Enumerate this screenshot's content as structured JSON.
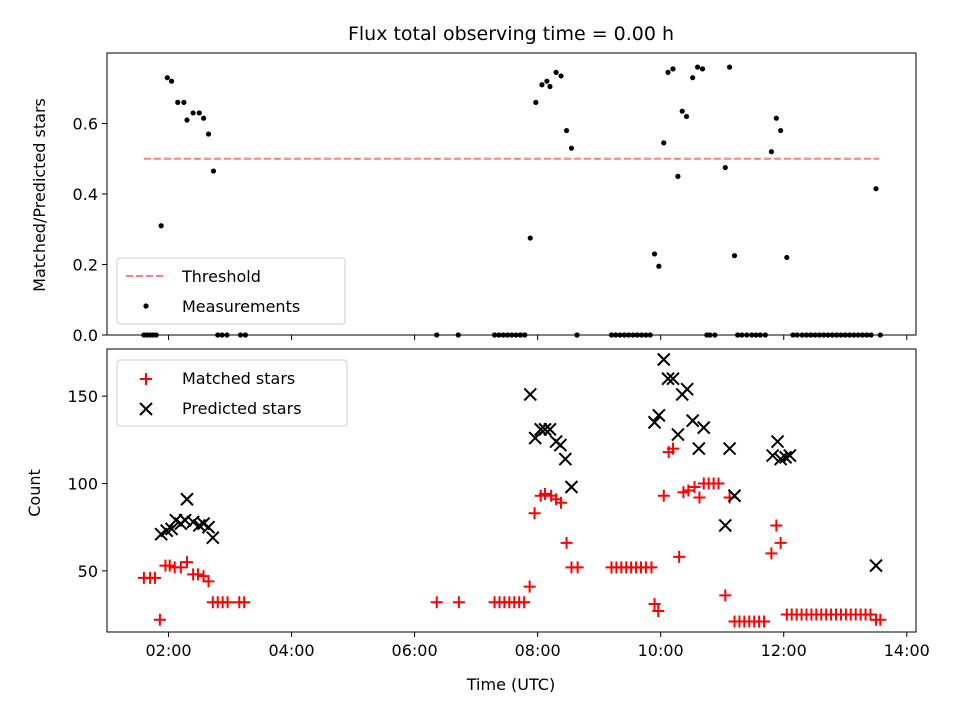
{
  "chart_data": [
    {
      "type": "scatter",
      "title": "Flux total observing time = 0.00 h",
      "xlabel": "",
      "ylabel": "Matched/Predicted stars",
      "xlim": [
        1.0,
        14.15
      ],
      "ylim": [
        0.0,
        0.8
      ],
      "yticks": [
        "0.0",
        "0.2",
        "0.4",
        "0.6"
      ],
      "ytick_values": [
        0.0,
        0.2,
        0.4,
        0.6
      ],
      "xtick_values": [
        2,
        4,
        6,
        8,
        10,
        12,
        14
      ],
      "grid": false,
      "legend": "lower-left",
      "threshold": {
        "name": "Threshold",
        "value": 0.5,
        "x_range": [
          1.6,
          13.55
        ],
        "color": "#ff7f7f",
        "style": "dashed"
      },
      "series": [
        {
          "name": "Measurements",
          "color": "#000000",
          "marker": "dot",
          "points": [
            [
              1.6,
              0
            ],
            [
              1.65,
              0
            ],
            [
              1.7,
              0
            ],
            [
              1.75,
              0
            ],
            [
              1.8,
              0
            ],
            [
              1.88,
              0.31
            ],
            [
              1.98,
              0.73
            ],
            [
              2.05,
              0.72
            ],
            [
              2.15,
              0.66
            ],
            [
              2.25,
              0.66
            ],
            [
              2.3,
              0.61
            ],
            [
              2.4,
              0.63
            ],
            [
              2.5,
              0.63
            ],
            [
              2.57,
              0.615
            ],
            [
              2.65,
              0.57
            ],
            [
              2.73,
              0.465
            ],
            [
              2.8,
              0
            ],
            [
              2.87,
              0
            ],
            [
              2.95,
              0
            ],
            [
              3.17,
              0
            ],
            [
              3.25,
              0
            ],
            [
              6.36,
              0
            ],
            [
              6.71,
              0
            ],
            [
              7.3,
              0
            ],
            [
              7.37,
              0
            ],
            [
              7.44,
              0
            ],
            [
              7.51,
              0
            ],
            [
              7.58,
              0
            ],
            [
              7.65,
              0
            ],
            [
              7.72,
              0
            ],
            [
              7.79,
              0
            ],
            [
              7.88,
              0.275
            ],
            [
              7.97,
              0.66
            ],
            [
              8.07,
              0.71
            ],
            [
              8.15,
              0.72
            ],
            [
              8.2,
              0.705
            ],
            [
              8.3,
              0.745
            ],
            [
              8.38,
              0.735
            ],
            [
              8.47,
              0.58
            ],
            [
              8.55,
              0.53
            ],
            [
              8.64,
              0
            ],
            [
              9.2,
              0
            ],
            [
              9.27,
              0
            ],
            [
              9.34,
              0
            ],
            [
              9.41,
              0
            ],
            [
              9.48,
              0
            ],
            [
              9.55,
              0
            ],
            [
              9.62,
              0
            ],
            [
              9.69,
              0
            ],
            [
              9.76,
              0
            ],
            [
              9.83,
              0
            ],
            [
              9.9,
              0.23
            ],
            [
              9.97,
              0.195
            ],
            [
              10.05,
              0.545
            ],
            [
              10.12,
              0.745
            ],
            [
              10.2,
              0.755
            ],
            [
              10.28,
              0.45
            ],
            [
              10.35,
              0.635
            ],
            [
              10.42,
              0.62
            ],
            [
              10.52,
              0.73
            ],
            [
              10.6,
              0.76
            ],
            [
              10.68,
              0.755
            ],
            [
              10.75,
              0
            ],
            [
              10.8,
              0
            ],
            [
              10.88,
              0
            ],
            [
              11.05,
              0.475
            ],
            [
              11.12,
              0.76
            ],
            [
              11.2,
              0.225
            ],
            [
              11.25,
              0
            ],
            [
              11.32,
              0
            ],
            [
              11.4,
              0
            ],
            [
              11.48,
              0
            ],
            [
              11.55,
              0
            ],
            [
              11.62,
              0
            ],
            [
              11.7,
              0
            ],
            [
              11.8,
              0.52
            ],
            [
              11.88,
              0.615
            ],
            [
              11.95,
              0.58
            ],
            [
              12.05,
              0.22
            ],
            [
              12.15,
              0
            ],
            [
              12.22,
              0
            ],
            [
              12.3,
              0
            ],
            [
              12.37,
              0
            ],
            [
              12.44,
              0
            ],
            [
              12.51,
              0
            ],
            [
              12.58,
              0
            ],
            [
              12.65,
              0
            ],
            [
              12.72,
              0
            ],
            [
              12.79,
              0
            ],
            [
              12.86,
              0
            ],
            [
              12.93,
              0
            ],
            [
              13.0,
              0
            ],
            [
              13.07,
              0
            ],
            [
              13.14,
              0
            ],
            [
              13.21,
              0
            ],
            [
              13.28,
              0
            ],
            [
              13.35,
              0
            ],
            [
              13.42,
              0
            ],
            [
              13.5,
              0.415
            ],
            [
              13.57,
              0
            ]
          ]
        }
      ]
    },
    {
      "type": "scatter",
      "title": "",
      "xlabel": "Time (UTC)",
      "ylabel": "Count",
      "xlim": [
        1.0,
        14.15
      ],
      "ylim": [
        15,
        177
      ],
      "xticks": [
        "02:00",
        "04:00",
        "06:00",
        "08:00",
        "10:00",
        "12:00",
        "14:00"
      ],
      "xtick_values": [
        2,
        4,
        6,
        8,
        10,
        12,
        14
      ],
      "yticks": [
        "50",
        "100",
        "150"
      ],
      "ytick_values": [
        50,
        100,
        150
      ],
      "grid": false,
      "legend": "upper-left",
      "series": [
        {
          "name": "Matched stars",
          "color": "#ff0000",
          "marker": "plus",
          "points": [
            [
              1.6,
              46
            ],
            [
              1.7,
              46
            ],
            [
              1.78,
              46
            ],
            [
              1.86,
              22
            ],
            [
              1.95,
              53
            ],
            [
              2.02,
              53
            ],
            [
              2.1,
              52
            ],
            [
              2.2,
              52
            ],
            [
              2.3,
              55
            ],
            [
              2.4,
              48
            ],
            [
              2.48,
              48
            ],
            [
              2.57,
              47
            ],
            [
              2.65,
              44
            ],
            [
              2.72,
              32
            ],
            [
              2.8,
              32
            ],
            [
              2.88,
              32
            ],
            [
              2.96,
              32
            ],
            [
              3.15,
              32
            ],
            [
              3.23,
              32
            ],
            [
              6.36,
              32
            ],
            [
              6.72,
              32
            ],
            [
              7.3,
              32
            ],
            [
              7.38,
              32
            ],
            [
              7.46,
              32
            ],
            [
              7.54,
              32
            ],
            [
              7.62,
              32
            ],
            [
              7.7,
              32
            ],
            [
              7.78,
              32
            ],
            [
              7.87,
              41
            ],
            [
              7.95,
              83
            ],
            [
              8.05,
              93
            ],
            [
              8.12,
              94
            ],
            [
              8.22,
              93
            ],
            [
              8.3,
              91
            ],
            [
              8.38,
              89
            ],
            [
              8.47,
              66
            ],
            [
              8.55,
              52
            ],
            [
              8.65,
              52
            ],
            [
              9.2,
              52
            ],
            [
              9.28,
              52
            ],
            [
              9.36,
              52
            ],
            [
              9.44,
              52
            ],
            [
              9.52,
              52
            ],
            [
              9.6,
              52
            ],
            [
              9.68,
              52
            ],
            [
              9.76,
              52
            ],
            [
              9.85,
              52
            ],
            [
              9.9,
              31
            ],
            [
              9.96,
              27
            ],
            [
              10.05,
              93
            ],
            [
              10.13,
              118
            ],
            [
              10.2,
              120
            ],
            [
              10.3,
              58
            ],
            [
              10.37,
              95
            ],
            [
              10.45,
              96
            ],
            [
              10.55,
              98
            ],
            [
              10.63,
              92
            ],
            [
              10.7,
              100
            ],
            [
              10.78,
              100
            ],
            [
              10.86,
              100
            ],
            [
              10.94,
              100
            ],
            [
              11.05,
              36
            ],
            [
              11.12,
              92
            ],
            [
              11.2,
              21
            ],
            [
              11.28,
              21
            ],
            [
              11.36,
              21
            ],
            [
              11.44,
              21
            ],
            [
              11.52,
              21
            ],
            [
              11.6,
              21
            ],
            [
              11.68,
              21
            ],
            [
              11.8,
              60
            ],
            [
              11.88,
              76
            ],
            [
              11.95,
              66
            ],
            [
              12.05,
              25
            ],
            [
              12.13,
              25
            ],
            [
              12.21,
              25
            ],
            [
              12.29,
              25
            ],
            [
              12.37,
              25
            ],
            [
              12.45,
              25
            ],
            [
              12.53,
              25
            ],
            [
              12.61,
              25
            ],
            [
              12.69,
              25
            ],
            [
              12.77,
              25
            ],
            [
              12.85,
              25
            ],
            [
              12.93,
              25
            ],
            [
              13.01,
              25
            ],
            [
              13.09,
              25
            ],
            [
              13.17,
              25
            ],
            [
              13.25,
              25
            ],
            [
              13.33,
              25
            ],
            [
              13.41,
              25
            ],
            [
              13.5,
              22
            ],
            [
              13.57,
              22
            ]
          ]
        },
        {
          "name": "Predicted stars",
          "color": "#000000",
          "marker": "x",
          "points": [
            [
              1.88,
              71
            ],
            [
              1.97,
              73
            ],
            [
              2.05,
              74
            ],
            [
              2.12,
              79
            ],
            [
              2.2,
              77
            ],
            [
              2.27,
              79
            ],
            [
              2.3,
              91
            ],
            [
              2.4,
              78
            ],
            [
              2.5,
              76
            ],
            [
              2.57,
              77
            ],
            [
              2.65,
              75
            ],
            [
              2.72,
              69
            ],
            [
              7.88,
              151
            ],
            [
              7.96,
              126
            ],
            [
              8.05,
              131
            ],
            [
              8.12,
              131
            ],
            [
              8.2,
              131
            ],
            [
              8.3,
              124
            ],
            [
              8.37,
              122
            ],
            [
              8.45,
              114
            ],
            [
              8.55,
              98
            ],
            [
              9.9,
              135
            ],
            [
              9.97,
              139
            ],
            [
              10.05,
              171
            ],
            [
              10.12,
              160
            ],
            [
              10.2,
              160
            ],
            [
              10.28,
              128
            ],
            [
              10.35,
              151
            ],
            [
              10.43,
              154
            ],
            [
              10.52,
              136
            ],
            [
              10.62,
              120
            ],
            [
              10.7,
              132
            ],
            [
              11.05,
              76
            ],
            [
              11.12,
              120
            ],
            [
              11.2,
              93
            ],
            [
              11.82,
              116
            ],
            [
              11.9,
              124
            ],
            [
              11.95,
              114
            ],
            [
              12.03,
              115
            ],
            [
              12.1,
              116
            ],
            [
              13.5,
              53
            ]
          ]
        }
      ]
    }
  ]
}
